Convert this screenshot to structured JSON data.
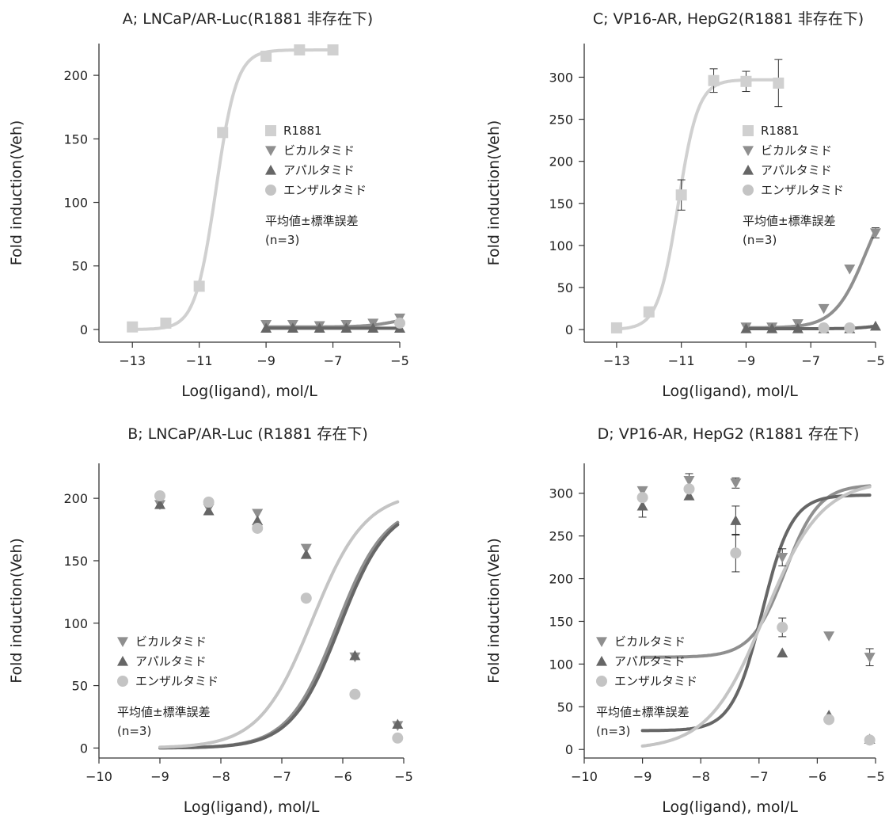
{
  "chart_data": [
    {
      "id": "A",
      "type": "line",
      "title": "A; LNCaP/AR-Luc(R1881 非存在下)",
      "xlabel": "Log(ligand), mol/L",
      "ylabel": "Fold induction(Veh)",
      "xlim": [
        -14,
        -5
      ],
      "ylim": [
        -10,
        225
      ],
      "xticks": [
        -13,
        -11,
        -9,
        -7,
        -5
      ],
      "yticks": [
        0,
        50,
        100,
        150,
        200
      ],
      "legend_position": "center-right",
      "legend_note": [
        "平均値±標準誤差",
        "(n=3)"
      ],
      "series": [
        {
          "name": "R1881",
          "marker": "square",
          "color": "#d0d0d0",
          "x": [
            -13,
            -12,
            -11,
            -10.3,
            -9,
            -8,
            -7
          ],
          "y": [
            2,
            5,
            34,
            155,
            215,
            220,
            220
          ],
          "curve": {
            "bottom": 0,
            "top": 220,
            "ec50": -10.5,
            "hill": 1.4
          }
        },
        {
          "name": "ビカルタミド",
          "marker": "triangle-down",
          "color": "#8f8f8f",
          "x": [
            -9,
            -8.2,
            -7.4,
            -6.6,
            -5.8,
            -5
          ],
          "y": [
            4,
            4,
            3,
            4,
            5,
            9
          ],
          "curve": {
            "bottom": 2,
            "top": 11,
            "ec50": -5.1,
            "hill": 1
          }
        },
        {
          "name": "アパルタミド",
          "marker": "triangle-up",
          "color": "#666666",
          "x": [
            -9,
            -8.2,
            -7.4,
            -6.6,
            -5.8,
            -5
          ],
          "y": [
            1,
            1,
            1,
            1,
            1,
            1
          ],
          "curve": {
            "bottom": 1,
            "top": 1,
            "ec50": -6,
            "hill": 1
          }
        },
        {
          "name": "エンザルタミド",
          "marker": "circle",
          "color": "#c4c4c4",
          "x": [
            -5
          ],
          "y": [
            5
          ],
          "curve": null
        }
      ]
    },
    {
      "id": "C",
      "type": "line",
      "title": "C; VP16-AR, HepG2(R1881 非存在下)",
      "xlabel": "Log(ligand), mol/L",
      "ylabel": "Fold induction(Veh)",
      "xlim": [
        -14,
        -5
      ],
      "ylim": [
        -15,
        340
      ],
      "xticks": [
        -13,
        -11,
        -9,
        -7,
        -5
      ],
      "yticks": [
        0,
        50,
        100,
        150,
        200,
        250,
        300
      ],
      "legend_position": "center-right",
      "legend_note": [
        "平均値±標準誤差",
        "(n=3)"
      ],
      "series": [
        {
          "name": "R1881",
          "marker": "square",
          "color": "#d0d0d0",
          "x": [
            -13,
            -12,
            -11,
            -10,
            -9,
            -8
          ],
          "y": [
            2,
            21,
            160,
            296,
            295,
            293
          ],
          "err": [
            0,
            0,
            18,
            14,
            12,
            28
          ],
          "curve": {
            "bottom": 0,
            "top": 297,
            "ec50": -11.1,
            "hill": 1.4
          }
        },
        {
          "name": "ビカルタミド",
          "marker": "triangle-down",
          "color": "#8f8f8f",
          "x": [
            -9,
            -8.2,
            -7.4,
            -6.6,
            -5.8,
            -5
          ],
          "y": [
            3,
            3,
            7,
            25,
            72,
            115
          ],
          "err": [
            0,
            0,
            0,
            0,
            0,
            6
          ],
          "curve": {
            "bottom": 2,
            "top": 180,
            "ec50": -5.3,
            "hill": 0.9
          }
        },
        {
          "name": "アパルタミド",
          "marker": "triangle-up",
          "color": "#666666",
          "x": [
            -9,
            -8.2,
            -7.4,
            -6.6,
            -5.8,
            -5
          ],
          "y": [
            1,
            1,
            1,
            1,
            1,
            4
          ],
          "curve": {
            "bottom": 1,
            "top": 8,
            "ec50": -4.9,
            "hill": 1.2
          }
        },
        {
          "name": "エンザルタミド",
          "marker": "circle",
          "color": "#c4c4c4",
          "x": [
            -6.6,
            -5.8
          ],
          "y": [
            2,
            2
          ],
          "curve": null
        }
      ]
    },
    {
      "id": "B",
      "type": "line",
      "title": "B; LNCaP/AR-Luc (R1881 存在下)",
      "xlabel": "Log(ligand), mol/L",
      "ylabel": "Fold induction(Veh)",
      "xlim": [
        -10,
        -5
      ],
      "ylim": [
        -8,
        228
      ],
      "xticks": [
        -10,
        -9,
        -8,
        -7,
        -6,
        -5
      ],
      "yticks": [
        0,
        50,
        100,
        150,
        200
      ],
      "legend_position": "bottom-left",
      "legend_note": [
        "平均値±標準誤差",
        "(n=3)"
      ],
      "series": [
        {
          "name": "ビカルタミド",
          "marker": "triangle-down",
          "color": "#8f8f8f",
          "x": [
            -9,
            -8.2,
            -7.4,
            -6.6,
            -5.8,
            -5.1
          ],
          "y": [
            195,
            192,
            188,
            160,
            73,
            18
          ],
          "curve": {
            "bottom": 0,
            "top": 195,
            "ec50": -6.1,
            "hill": 1.1
          }
        },
        {
          "name": "アパルタミド",
          "marker": "triangle-up",
          "color": "#666666",
          "x": [
            -9,
            -8.2,
            -7.4,
            -6.6,
            -5.8,
            -5.1
          ],
          "y": [
            195,
            190,
            182,
            155,
            74,
            19
          ],
          "curve": {
            "bottom": 0,
            "top": 195,
            "ec50": -6.05,
            "hill": 1.1
          }
        },
        {
          "name": "エンザルタミド",
          "marker": "circle",
          "color": "#c4c4c4",
          "x": [
            -9,
            -8.2,
            -7.4,
            -6.6,
            -5.8,
            -5.1
          ],
          "y": [
            202,
            197,
            176,
            120,
            43,
            8
          ],
          "curve": {
            "bottom": 0,
            "top": 205,
            "ec50": -6.5,
            "hill": 1.0
          }
        }
      ]
    },
    {
      "id": "D",
      "type": "line",
      "title": "D; VP16-AR, HepG2 (R1881 存在下)",
      "xlabel": "Log(ligand), mol/L",
      "ylabel": "Fold induction(Veh)",
      "xlim": [
        -10,
        -5
      ],
      "ylim": [
        -10,
        335
      ],
      "xticks": [
        -10,
        -9,
        -8,
        -7,
        -6,
        -5
      ],
      "yticks": [
        0,
        50,
        100,
        150,
        200,
        250,
        300
      ],
      "legend_position": "bottom-left",
      "legend_note": [
        "平均値±標準誤差",
        "(n=3)"
      ],
      "series": [
        {
          "name": "ビカルタミド",
          "marker": "triangle-down",
          "color": "#8f8f8f",
          "x": [
            -9,
            -8.2,
            -7.4,
            -6.6,
            -5.8,
            -5.1
          ],
          "y": [
            303,
            315,
            312,
            225,
            133,
            108
          ],
          "err": [
            0,
            8,
            6,
            10,
            0,
            10
          ],
          "curve": {
            "bottom": 108,
            "top": 310,
            "ec50": -6.55,
            "hill": 1.5
          }
        },
        {
          "name": "アパルタミド",
          "marker": "triangle-up",
          "color": "#666666",
          "x": [
            -9,
            -8.2,
            -7.4,
            -6.6,
            -5.8,
            -5.1
          ],
          "y": [
            285,
            297,
            268,
            113,
            40,
            12
          ],
          "err": [
            13,
            0,
            17,
            0,
            0,
            0
          ],
          "curve": {
            "bottom": 22,
            "top": 298,
            "ec50": -6.95,
            "hill": 1.7
          }
        },
        {
          "name": "エンザルタミド",
          "marker": "circle",
          "color": "#c4c4c4",
          "x": [
            -9,
            -8.2,
            -7.4,
            -6.6,
            -5.8,
            -5.1
          ],
          "y": [
            295,
            305,
            230,
            143,
            35,
            11
          ],
          "err": [
            0,
            0,
            22,
            11,
            0,
            0
          ],
          "curve": {
            "bottom": 0,
            "top": 315,
            "ec50": -6.9,
            "hill": 0.9
          }
        }
      ]
    }
  ]
}
